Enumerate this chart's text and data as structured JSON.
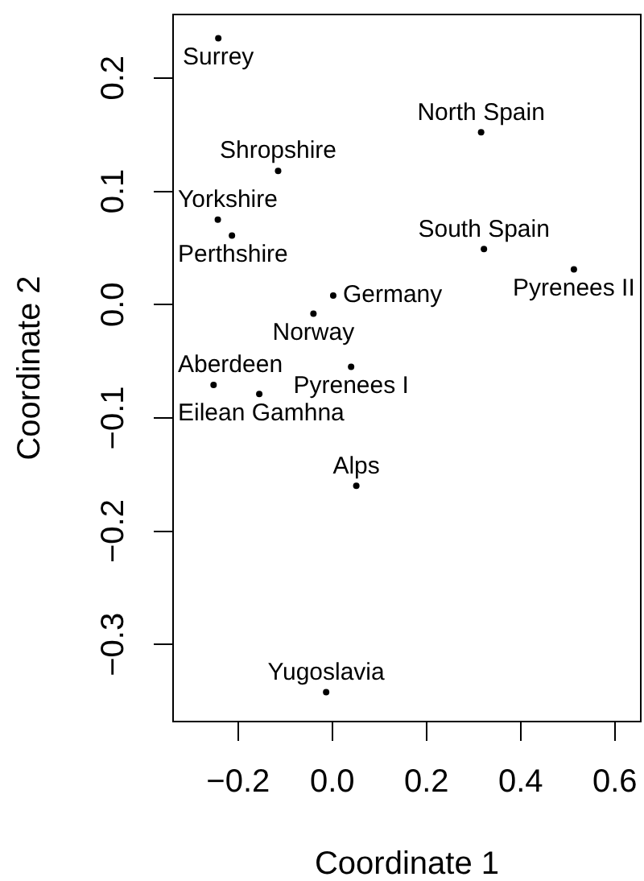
{
  "chart_data": {
    "type": "scatter",
    "xlabel": "Coordinate 1",
    "ylabel": "Coordinate 2",
    "x": [
      -0.242,
      0.316,
      -0.115,
      -0.243,
      -0.213,
      0.322,
      0.513,
      0.002,
      -0.04,
      0.04,
      -0.252,
      -0.155,
      0.051,
      -0.013
    ],
    "values": [
      0.235,
      0.152,
      0.118,
      0.075,
      0.061,
      0.049,
      0.031,
      0.008,
      -0.008,
      -0.055,
      -0.071,
      -0.079,
      -0.16,
      -0.342
    ],
    "value_labels": [
      "Surrey",
      "North Spain",
      "Shropshire",
      "Yorkshire",
      "Perthshire",
      "South Spain",
      "Pyrenees II",
      "Germany",
      "Norway",
      "Pyrenees I",
      "Aberdeen",
      "Eilean Gamhna",
      "Alps",
      "Yugoslavia"
    ],
    "color": "#000000",
    "marker": "circle",
    "grid": false,
    "legend": false,
    "xlim": [
      -0.338,
      0.655
    ],
    "ylim": [
      -0.368,
      0.256
    ],
    "xticks": [
      {
        "value": -0.2,
        "label": "−0.2"
      },
      {
        "value": 0,
        "label": "0.0"
      },
      {
        "value": 0.2,
        "label": "0.2"
      },
      {
        "value": 0.4,
        "label": "0.4"
      },
      {
        "value": 0.6,
        "label": "0.6"
      }
    ],
    "yticks": [
      {
        "value": -0.3,
        "label": "−0.3"
      },
      {
        "value": -0.2,
        "label": "−0.2"
      },
      {
        "value": -0.1,
        "label": "−0.1"
      },
      {
        "value": 0,
        "label": "0.0"
      },
      {
        "value": 0.1,
        "label": "0.1"
      },
      {
        "value": 0.2,
        "label": "0.2"
      }
    ]
  }
}
